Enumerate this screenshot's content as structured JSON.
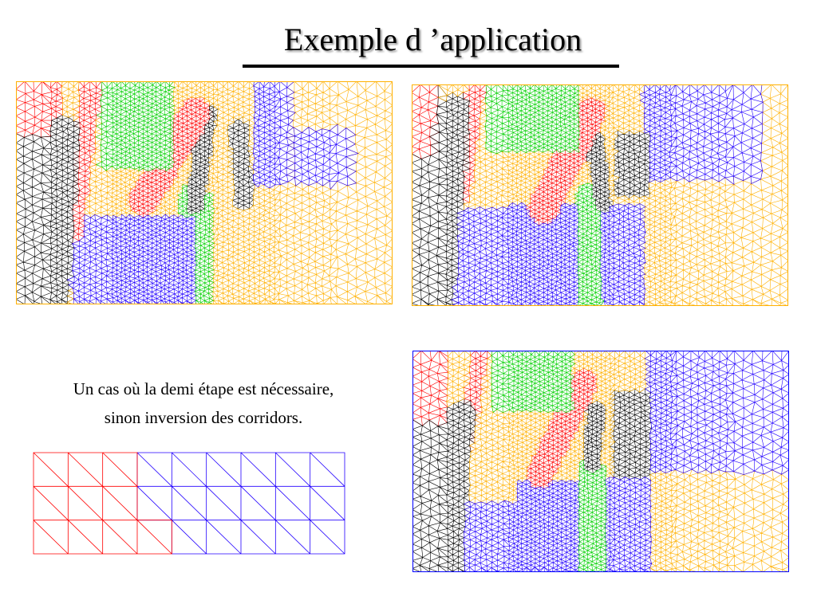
{
  "slide": {
    "title": "Exemple d ’application",
    "caption_line1": "Un cas où la demi étape est nécessaire,",
    "caption_line2": "sinon inversion des corridors."
  },
  "colors": {
    "red": "#ff0000",
    "green": "#00d000",
    "blue": "#2200ff",
    "orange": "#ffb000",
    "black": "#000000",
    "frame_red": "#ff0000",
    "frame_blue": "#0000ff",
    "frame_orange": "#ffb000"
  },
  "meshes": [
    {
      "name": "initial-partition",
      "frame_color": "orange"
    },
    {
      "name": "final-partition",
      "frame_color": "orange"
    },
    {
      "name": "half-step-partition",
      "frame_color": "blue"
    }
  ],
  "strip": {
    "columns": 9,
    "rows": 3,
    "regions": [
      "red",
      "red",
      "red",
      "blue",
      "blue",
      "blue",
      "blue",
      "blue",
      "blue"
    ],
    "red_row3_extra_column": 4
  }
}
